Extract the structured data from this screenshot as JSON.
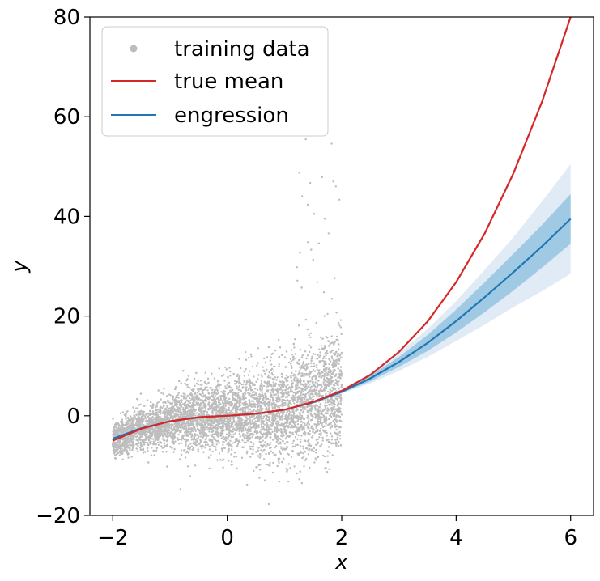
{
  "chart_data": {
    "type": "scatter",
    "xlabel": "x",
    "ylabel": "y",
    "xlim": [
      -2.4,
      6.4
    ],
    "ylim": [
      -20,
      80
    ],
    "x_ticks": [
      -2,
      0,
      2,
      4,
      6
    ],
    "x_tick_labels": [
      "−2",
      "0",
      "2",
      "4",
      "6"
    ],
    "y_ticks": [
      -20,
      0,
      20,
      40,
      60,
      80
    ],
    "y_tick_labels": [
      "−20",
      "0",
      "20",
      "40",
      "60",
      "80"
    ],
    "grid": false,
    "legend_position": "top-left",
    "series": [
      {
        "name": "training data",
        "kind": "scatter",
        "color": "#bdbdbd",
        "x_range": [
          -2,
          2
        ],
        "description_of_spread": "noise grows with x",
        "center_points": [
          {
            "x": -2,
            "y": -5
          },
          {
            "x": -1.5,
            "y": -2.6
          },
          {
            "x": -1,
            "y": -1.1
          },
          {
            "x": -0.5,
            "y": -0.3
          },
          {
            "x": 0,
            "y": 0
          },
          {
            "x": 0.5,
            "y": 0.4
          },
          {
            "x": 1,
            "y": 1.2
          },
          {
            "x": 1.5,
            "y": 2.8
          },
          {
            "x": 2,
            "y": 5
          }
        ]
      },
      {
        "name": "true mean",
        "kind": "line",
        "color": "#d62728",
        "x": [
          -2,
          -1.5,
          -1,
          -0.5,
          0,
          0.5,
          1,
          1.5,
          2,
          2.5,
          3,
          3.5,
          4,
          4.5,
          5,
          5.5,
          6
        ],
        "y": [
          -5,
          -2.6,
          -1.1,
          -0.3,
          0,
          0.4,
          1.2,
          2.8,
          5,
          8.2,
          12.8,
          18.9,
          26.8,
          36.6,
          48.6,
          63,
          80
        ]
      },
      {
        "name": "engression",
        "kind": "line_with_bands",
        "color": "#1f77b4",
        "x": [
          -2,
          -1.5,
          -1,
          -0.5,
          0,
          0.5,
          1,
          1.5,
          2,
          2.5,
          3,
          3.5,
          4,
          4.5,
          5,
          5.5,
          6
        ],
        "y": [
          -4.6,
          -2.5,
          -1.1,
          -0.3,
          0,
          0.4,
          1.2,
          2.7,
          4.8,
          7.5,
          10.8,
          14.6,
          19,
          23.8,
          28.8,
          34,
          39.5
        ],
        "band_outer_halfwidth": [
          0.5,
          0.3,
          0.2,
          0.1,
          0.1,
          0.1,
          0.1,
          0.2,
          0.4,
          1,
          1.8,
          2.8,
          4,
          5.5,
          7,
          9,
          11
        ],
        "band_inner_halfwidth": [
          0.3,
          0.2,
          0.1,
          0.05,
          0.05,
          0.05,
          0.05,
          0.1,
          0.2,
          0.6,
          1,
          1.6,
          2.3,
          3,
          3.7,
          4.3,
          5
        ]
      }
    ]
  }
}
